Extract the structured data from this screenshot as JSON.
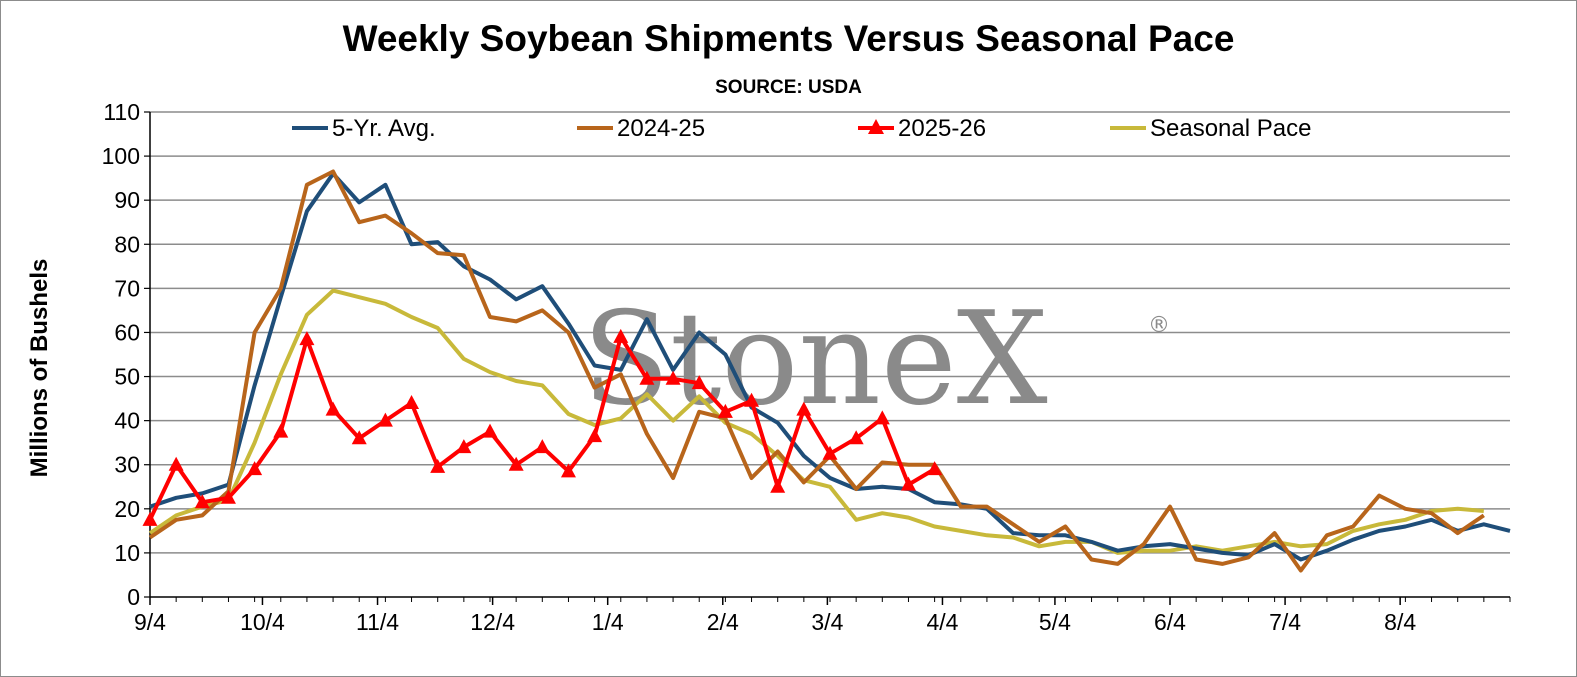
{
  "title": "Weekly Soybean Shipments Versus Seasonal Pace",
  "subtitle": "SOURCE: USDA",
  "watermark": "StoneX",
  "watermark_mark": "®",
  "chart_data": {
    "type": "line",
    "title": "Weekly Soybean Shipments Versus Seasonal Pace",
    "subtitle": "SOURCE: USDA",
    "ylabel": "Millions of Bushels",
    "xlabel": "",
    "ylim": [
      0,
      110
    ],
    "yticks": [
      0,
      10,
      20,
      30,
      40,
      50,
      60,
      70,
      80,
      90,
      100,
      110
    ],
    "xtick_labels": [
      "9/4",
      "10/4",
      "11/4",
      "12/4",
      "1/4",
      "2/4",
      "3/4",
      "4/4",
      "5/4",
      "6/4",
      "7/4",
      "8/4"
    ],
    "xtick_week_index": [
      0,
      4.3,
      8.7,
      13.1,
      17.5,
      21.9,
      25.9,
      30.3,
      34.6,
      39.0,
      43.4,
      47.8
    ],
    "weeks_total": 52,
    "grid": "horizontal",
    "legend_position": "top",
    "series": [
      {
        "name": "5-Yr. Avg.",
        "color": "#1f4e79",
        "marker": "none",
        "values": [
          20.5,
          22.5,
          23.5,
          25.5,
          48,
          68,
          87.5,
          96,
          89.5,
          93.5,
          80,
          80.5,
          75,
          72,
          67.5,
          70.5,
          62,
          52.5,
          51.5,
          63,
          51.5,
          60,
          55,
          43,
          39.5,
          32,
          27,
          24.5,
          25,
          24.5,
          21.5,
          21,
          20,
          14.5,
          14,
          14,
          12.5,
          10.5,
          11.5,
          12,
          11,
          10,
          9.5,
          12,
          8.5,
          10.5,
          13,
          15,
          16,
          17.5,
          15,
          16.5,
          15
        ]
      },
      {
        "name": "2024-25",
        "color": "#b8651b",
        "marker": "none",
        "values": [
          13.5,
          17.5,
          18.5,
          24,
          60,
          70,
          93.5,
          96.5,
          85,
          86.5,
          82.5,
          78,
          77.5,
          63.5,
          62.5,
          65,
          60,
          47.5,
          50.5,
          37,
          27,
          42,
          40.5,
          27,
          33,
          26,
          32,
          24.5,
          30.5,
          30,
          30,
          20.5,
          20.5,
          16.5,
          12.5,
          16,
          8.5,
          7.5,
          12,
          20.5,
          8.5,
          7.5,
          9,
          14.5,
          6,
          14,
          16,
          23,
          20,
          19,
          14.5,
          18.5
        ]
      },
      {
        "name": "2025-26",
        "color": "#ff0000",
        "marker": "triangle",
        "values": [
          17.5,
          30,
          21.5,
          22.5,
          29,
          37.5,
          58.5,
          42.5,
          36,
          40,
          44,
          29.5,
          34,
          37.5,
          30,
          34,
          28.5,
          36.5,
          59,
          49.5,
          49.5,
          48.5,
          42,
          44.5,
          25,
          42.5,
          32.5,
          36,
          40.5,
          25.5,
          29
        ]
      },
      {
        "name": "Seasonal Pace",
        "color": "#c8b93a",
        "marker": "none",
        "values": [
          14.5,
          18.5,
          20.5,
          22,
          35,
          50.5,
          64,
          69.5,
          68,
          66.5,
          63.5,
          61,
          54,
          51,
          49,
          48,
          41.5,
          39,
          40.5,
          46,
          40,
          45.5,
          39.5,
          37,
          32,
          26.5,
          25,
          17.5,
          19,
          18,
          16,
          15,
          14,
          13.5,
          11.5,
          12.5,
          12.5,
          10,
          10.5,
          10.5,
          11.5,
          10.5,
          11.5,
          12.5,
          11.5,
          12,
          15,
          16.5,
          17.5,
          19.5,
          20,
          19.5
        ]
      }
    ]
  }
}
